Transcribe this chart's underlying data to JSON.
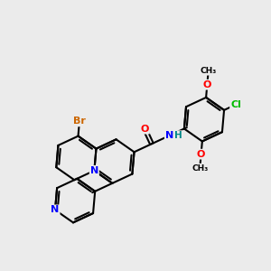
{
  "bg_color": "#ebebeb",
  "bond_color": "#000000",
  "atom_colors": {
    "N": "#0000ff",
    "O": "#ff0000",
    "Br": "#cc6600",
    "Cl": "#00bb00",
    "H": "#008888",
    "C": "#000000"
  },
  "figsize": [
    3.0,
    3.0
  ],
  "dpi": 100
}
